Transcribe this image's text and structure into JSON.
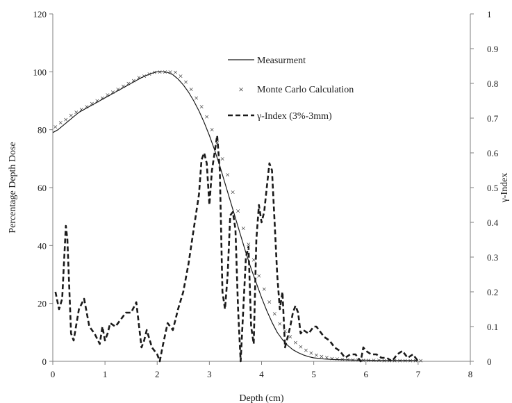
{
  "chart_data": {
    "type": "line",
    "title": "",
    "xlabel": "Depth (cm)",
    "ylabel": "Percentage Depth Dose",
    "y2label": "γ-Index",
    "xlim": [
      0,
      8
    ],
    "ylim": [
      0,
      120
    ],
    "y2lim": [
      0,
      1
    ],
    "x_ticks": [
      "0",
      "1",
      "2",
      "3",
      "4",
      "5",
      "6",
      "7",
      "8"
    ],
    "y_ticks": [
      "0",
      "20",
      "40",
      "60",
      "80",
      "100",
      "120"
    ],
    "y2_ticks": [
      "0",
      "0.1",
      "0.2",
      "0.3",
      "0.4",
      "0.5",
      "0.6",
      "0.7",
      "0.8",
      "0.9",
      "1"
    ],
    "grid": false,
    "legend_position": "top-center",
    "series": [
      {
        "name": "Measurment",
        "axis": "left",
        "style": "solid",
        "color": "#1a1a1a",
        "x": [
          0,
          0.1,
          0.2,
          0.3,
          0.4,
          0.5,
          0.6,
          0.7,
          0.8,
          0.9,
          1.0,
          1.1,
          1.2,
          1.3,
          1.4,
          1.5,
          1.6,
          1.7,
          1.8,
          1.9,
          2.0,
          2.1,
          2.2,
          2.3,
          2.4,
          2.5,
          2.6,
          2.7,
          2.8,
          2.9,
          3.0,
          3.1,
          3.2,
          3.3,
          3.4,
          3.5,
          3.6,
          3.7,
          3.8,
          3.9,
          4.0,
          4.1,
          4.2,
          4.3,
          4.4,
          4.5,
          4.6,
          4.7,
          4.8,
          4.9,
          5.0,
          5.2,
          5.4,
          5.6,
          5.8,
          6.0,
          6.2,
          6.4,
          6.6,
          6.8,
          7.0
        ],
        "y": [
          79,
          80,
          81.5,
          83,
          84.5,
          86,
          87,
          88,
          89,
          90,
          91,
          92,
          93,
          94,
          95,
          96,
          97,
          98,
          98.8,
          99.5,
          100,
          100,
          99.8,
          99,
          97.5,
          95.5,
          93,
          90,
          86.5,
          82.5,
          78,
          73,
          67.5,
          61.5,
          55.5,
          49.5,
          43.5,
          37.5,
          32,
          27,
          22,
          17.5,
          13.5,
          10,
          7.5,
          5.5,
          4,
          3,
          2.2,
          1.6,
          1.2,
          0.8,
          0.6,
          0.5,
          0.4,
          0.4,
          0.3,
          0.3,
          0.3,
          0.3,
          0.3
        ]
      },
      {
        "name": "Monte Carlo Calculation",
        "axis": "left",
        "style": "markers",
        "marker": "×",
        "color": "#1a1a1a",
        "x": [
          0.05,
          0.15,
          0.25,
          0.35,
          0.45,
          0.55,
          0.65,
          0.75,
          0.85,
          0.95,
          1.05,
          1.15,
          1.25,
          1.35,
          1.45,
          1.55,
          1.65,
          1.75,
          1.85,
          1.95,
          2.05,
          2.15,
          2.25,
          2.35,
          2.45,
          2.55,
          2.65,
          2.75,
          2.85,
          2.95,
          3.05,
          3.15,
          3.25,
          3.35,
          3.45,
          3.55,
          3.65,
          3.75,
          3.85,
          3.95,
          4.05,
          4.15,
          4.25,
          4.35,
          4.45,
          4.55,
          4.65,
          4.75,
          4.85,
          4.95,
          5.05,
          5.15,
          5.25,
          5.35,
          5.45,
          5.55,
          5.65,
          5.75,
          5.85,
          5.95,
          6.05,
          6.15,
          6.25,
          6.35,
          6.45,
          6.55,
          6.65,
          6.75,
          6.85,
          6.95,
          7.05
        ],
        "y": [
          81,
          82.5,
          83.5,
          85,
          86,
          87,
          88,
          89,
          90,
          91,
          92,
          93,
          94,
          95,
          96,
          97,
          98,
          98.5,
          99.3,
          99.8,
          100,
          100,
          100,
          99.8,
          98.5,
          96.5,
          94,
          91,
          88,
          84.5,
          80,
          75.5,
          70,
          64.5,
          58.5,
          52,
          46,
          40.5,
          35,
          29.5,
          25,
          20.5,
          16.5,
          13,
          10.5,
          8.5,
          6.5,
          5,
          3.8,
          2.9,
          2.2,
          1.7,
          1.3,
          1.0,
          0.8,
          0.7,
          0.6,
          0.5,
          0.5,
          0.4,
          0.4,
          0.4,
          0.4,
          0.3,
          0.3,
          0.3,
          0.3,
          0.3,
          0.3,
          0.3,
          0.3
        ]
      },
      {
        "name": "γ-Index (3%-3mm)",
        "axis": "right",
        "style": "dashed",
        "color": "#1a1a1a",
        "x": [
          0.05,
          0.12,
          0.18,
          0.25,
          0.28,
          0.35,
          0.4,
          0.5,
          0.6,
          0.7,
          0.8,
          0.9,
          0.95,
          1.0,
          1.05,
          1.1,
          1.2,
          1.3,
          1.4,
          1.5,
          1.6,
          1.7,
          1.75,
          1.8,
          1.9,
          2.0,
          2.05,
          2.1,
          2.2,
          2.3,
          2.4,
          2.5,
          2.6,
          2.7,
          2.8,
          2.85,
          2.9,
          2.95,
          3.0,
          3.05,
          3.1,
          3.15,
          3.2,
          3.25,
          3.3,
          3.35,
          3.4,
          3.45,
          3.5,
          3.55,
          3.6,
          3.65,
          3.7,
          3.75,
          3.8,
          3.85,
          3.9,
          3.95,
          4.0,
          4.05,
          4.1,
          4.15,
          4.2,
          4.25,
          4.3,
          4.35,
          4.4,
          4.45,
          4.5,
          4.55,
          4.6,
          4.65,
          4.7,
          4.75,
          4.8,
          4.9,
          5.0,
          5.05,
          5.1,
          5.2,
          5.3,
          5.4,
          5.5,
          5.55,
          5.6,
          5.7,
          5.8,
          5.9,
          5.95,
          6.0,
          6.1,
          6.2,
          6.3,
          6.4,
          6.5,
          6.6,
          6.7,
          6.8,
          6.9,
          7.0
        ],
        "y": [
          0.2,
          0.15,
          0.18,
          0.39,
          0.35,
          0.08,
          0.06,
          0.15,
          0.18,
          0.1,
          0.08,
          0.05,
          0.1,
          0.06,
          0.08,
          0.11,
          0.1,
          0.12,
          0.14,
          0.14,
          0.17,
          0.04,
          0.06,
          0.09,
          0.04,
          0.02,
          0.0,
          0.04,
          0.11,
          0.09,
          0.15,
          0.2,
          0.28,
          0.38,
          0.48,
          0.58,
          0.6,
          0.57,
          0.45,
          0.55,
          0.6,
          0.65,
          0.55,
          0.2,
          0.15,
          0.25,
          0.42,
          0.43,
          0.38,
          0.15,
          0.0,
          0.15,
          0.3,
          0.33,
          0.1,
          0.05,
          0.35,
          0.45,
          0.4,
          0.43,
          0.5,
          0.57,
          0.55,
          0.4,
          0.25,
          0.15,
          0.2,
          0.04,
          0.07,
          0.1,
          0.14,
          0.16,
          0.14,
          0.08,
          0.09,
          0.08,
          0.1,
          0.1,
          0.09,
          0.07,
          0.06,
          0.04,
          0.03,
          0.02,
          0.01,
          0.02,
          0.02,
          0.0,
          0.04,
          0.03,
          0.02,
          0.02,
          0.01,
          0.01,
          0.0,
          0.02,
          0.03,
          0.01,
          0.02,
          0.0
        ]
      }
    ]
  }
}
